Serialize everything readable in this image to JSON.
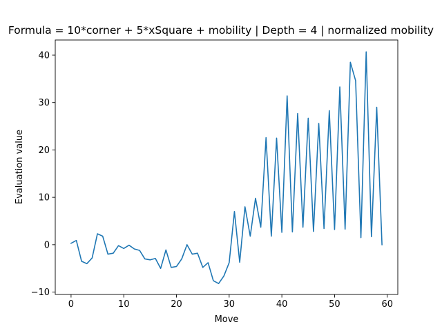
{
  "chart_data": {
    "type": "line",
    "title": "Formula = 10*corner + 5*xSquare + mobility | Depth = 4 | normalized mobility",
    "xlabel": "Move",
    "ylabel": "Evaluation value",
    "xlim": [
      -3,
      62
    ],
    "ylim": [
      -10.5,
      43.2
    ],
    "xticks": [
      0,
      10,
      20,
      30,
      40,
      50,
      60
    ],
    "yticks": [
      -10,
      0,
      10,
      20,
      30,
      40
    ],
    "grid": false,
    "series_color": "#1f77b4",
    "series": [
      {
        "x": [
          0,
          1,
          2,
          3,
          4,
          5,
          6,
          7,
          8,
          9,
          10,
          11,
          12,
          13,
          14,
          15,
          16,
          17,
          18,
          19,
          20,
          21,
          22,
          23,
          24,
          25,
          26,
          27,
          28,
          29,
          30,
          31,
          32,
          33,
          34,
          35,
          36,
          37,
          38,
          39,
          40,
          41,
          42,
          43,
          44,
          45,
          46,
          47,
          48,
          49,
          50,
          51,
          52,
          53,
          54,
          55,
          56,
          57,
          58,
          59
        ],
        "values": [
          0.3,
          0.9,
          -3.5,
          -4,
          -2.8,
          2.3,
          1.8,
          -2,
          -1.8,
          -0.2,
          -0.8,
          -0.1,
          -0.9,
          -1.2,
          -3,
          -3.2,
          -2.9,
          -5,
          -1.1,
          -4.8,
          -4.6,
          -3,
          0,
          -2,
          -1.8,
          -4.8,
          -3.8,
          -7.6,
          -8.2,
          -6.6,
          -3.8,
          7,
          -3.7,
          8,
          1.8,
          9.8,
          3.7,
          22.6,
          1.8,
          22.5,
          2.6,
          31.4,
          2.7,
          27.7,
          3.7,
          26.7,
          2.8,
          25.6,
          3.4,
          28.3,
          3.2,
          33.3,
          3.3,
          38.5,
          34.6,
          1.5,
          40.7,
          1.7,
          29,
          0
        ]
      }
    ]
  }
}
